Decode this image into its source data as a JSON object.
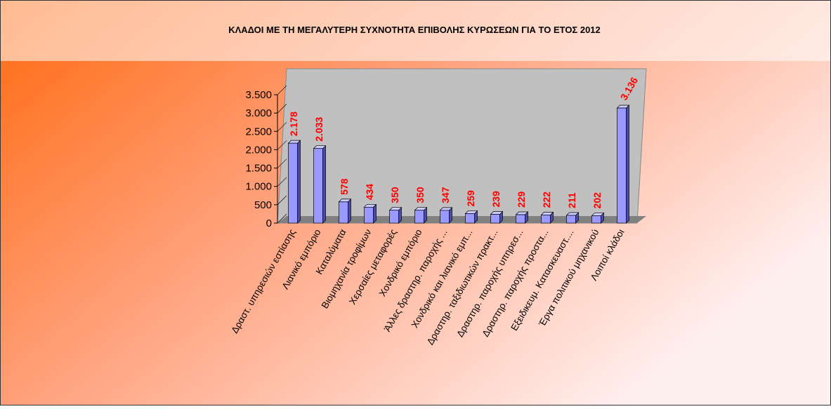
{
  "chart_data": {
    "type": "bar",
    "title": "ΚΛΑΔΟΙ ΜΕ ΤΗ ΜΕΓΑΛΥΤΕΡΗ ΣΥΧΝΟΤΗΤΑ ΕΠΙΒΟΛΗΣ ΚΥΡΩΣΕΩΝ ΓΙΑ ΤΟ ΕΤΟΣ 2012",
    "categories": [
      "Δραστ. υπηρεσιών εστίασης",
      "Λιανικό εμπόριο",
      "Καταλύματα",
      "Βιομηχανία τροφίμων",
      "Χερσαίες μεταφορές",
      "Χονδρικό εμπόριο",
      "Άλλες δραστηρ. παροχής ...",
      "Χονδρικό και λιανικό εμπ...",
      "Δραστηρ. ταξιδιωτικών πρακτ...",
      "Δραστηρ. παροχής υπηρεσ...",
      "Δραστηρ. παροχής προστα...",
      "Εξειδικευμ. Κατασκευαστ....",
      "Έργα πολιτικού μηχανικού",
      "Λοιποί κλάδοι"
    ],
    "values": [
      2178,
      2033,
      578,
      434,
      350,
      350,
      347,
      259,
      239,
      229,
      222,
      211,
      202,
      3136
    ],
    "value_labels": [
      "2.178",
      "2.033",
      "578",
      "434",
      "350",
      "350",
      "347",
      "259",
      "239",
      "229",
      "222",
      "211",
      "202",
      "3.136"
    ],
    "color": "#9999ff",
    "value_label_color": "#ff0000",
    "ylim": [
      0,
      3500
    ],
    "yticks": [
      0,
      500,
      {
        "value": 1000,
        "label": "1.000"
      },
      {
        "value": 1500,
        "label": "1.500"
      },
      {
        "value": 2000,
        "label": "2.000"
      },
      {
        "value": 2500,
        "label": "2.500"
      },
      {
        "value": 3000,
        "label": "3.000"
      },
      {
        "value": 3500,
        "label": "3.500"
      }
    ]
  }
}
